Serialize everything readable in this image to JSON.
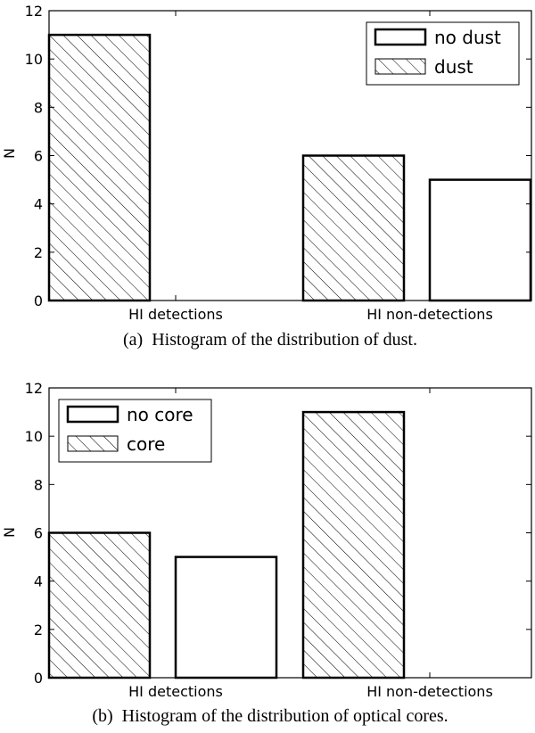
{
  "chart_data": [
    {
      "type": "bar",
      "categories": [
        "HI detections",
        "HI non-detections"
      ],
      "series": [
        {
          "name": "dust",
          "values": [
            11,
            6
          ],
          "hatch": true
        },
        {
          "name": "no dust",
          "values": [
            0,
            5
          ],
          "hatch": false
        }
      ],
      "ylabel": "N",
      "ylim": [
        0,
        12
      ],
      "yticks": [
        0,
        2,
        4,
        6,
        8,
        10,
        12
      ],
      "legend": [
        {
          "label": "no dust",
          "hatch": false
        },
        {
          "label": "dust",
          "hatch": true
        }
      ],
      "legend_position": "top-right",
      "caption": "(a)  Histogram of the distribution of dust."
    },
    {
      "type": "bar",
      "categories": [
        "HI detections",
        "HI non-detections"
      ],
      "series": [
        {
          "name": "core",
          "values": [
            6,
            11
          ],
          "hatch": true
        },
        {
          "name": "no core",
          "values": [
            5,
            0
          ],
          "hatch": false
        }
      ],
      "ylabel": "N",
      "ylim": [
        0,
        12
      ],
      "yticks": [
        0,
        2,
        4,
        6,
        8,
        10,
        12
      ],
      "legend": [
        {
          "label": "no core",
          "hatch": false
        },
        {
          "label": "core",
          "hatch": true
        }
      ],
      "legend_position": "top-left",
      "caption": "(b)  Histogram of the distribution of optical cores."
    }
  ]
}
